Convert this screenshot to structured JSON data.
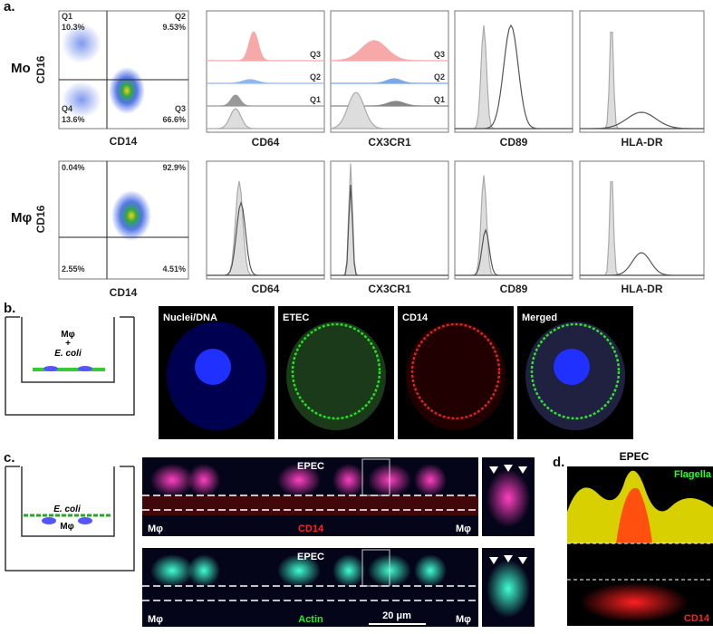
{
  "panel_a": {
    "label": "a.",
    "rows": [
      {
        "label": "Mo",
        "dot_plot": {
          "y_axis": "CD16",
          "x_axis": "CD14",
          "quadrants": [
            {
              "name": "Q1",
              "value": "10.3%"
            },
            {
              "name": "Q2",
              "value": "9.53%"
            },
            {
              "name": "Q4",
              "value": "13.6%"
            },
            {
              "name": "Q3",
              "value": "66.6%"
            }
          ]
        },
        "histograms": [
          {
            "marker": "CD64",
            "gates": [
              "Q3",
              "Q2",
              "Q1"
            ]
          },
          {
            "marker": "CX3CR1",
            "gates": [
              "Q3",
              "Q2",
              "Q1"
            ]
          },
          {
            "marker": "CD89"
          },
          {
            "marker": "HLA-DR"
          }
        ]
      },
      {
        "label": "Mφ",
        "dot_plot": {
          "y_axis": "CD16",
          "x_axis": "CD14",
          "quadrants": [
            {
              "value": "0.04%"
            },
            {
              "value": "92.9%"
            },
            {
              "value": "2.55%"
            },
            {
              "value": "4.51%"
            }
          ]
        },
        "histograms": [
          {
            "marker": "CD64"
          },
          {
            "marker": "CX3CR1"
          },
          {
            "marker": "CD89"
          },
          {
            "marker": "HLA-DR"
          }
        ]
      }
    ]
  },
  "panel_b": {
    "label": "b.",
    "diagram": {
      "cell": "Mφ",
      "plus": "+",
      "bacteria": "E. coli"
    },
    "images": [
      "Nuclei/DNA",
      "ETEC",
      "CD14",
      "Merged"
    ]
  },
  "panel_c": {
    "label": "c.",
    "diagram": {
      "bacteria": "E. coli",
      "cell": "Mφ"
    },
    "strips": [
      {
        "top": "EPEC",
        "left": "Mφ",
        "right": "Mφ",
        "stain": "CD14"
      },
      {
        "top": "EPEC",
        "left": "Mφ",
        "right": "Mφ",
        "stain": "Actin",
        "scale_bar": "20 μm"
      }
    ]
  },
  "panel_d": {
    "label": "d.",
    "title": "EPEC",
    "stain_top": "Flagella",
    "stain_bottom": "CD14"
  }
}
